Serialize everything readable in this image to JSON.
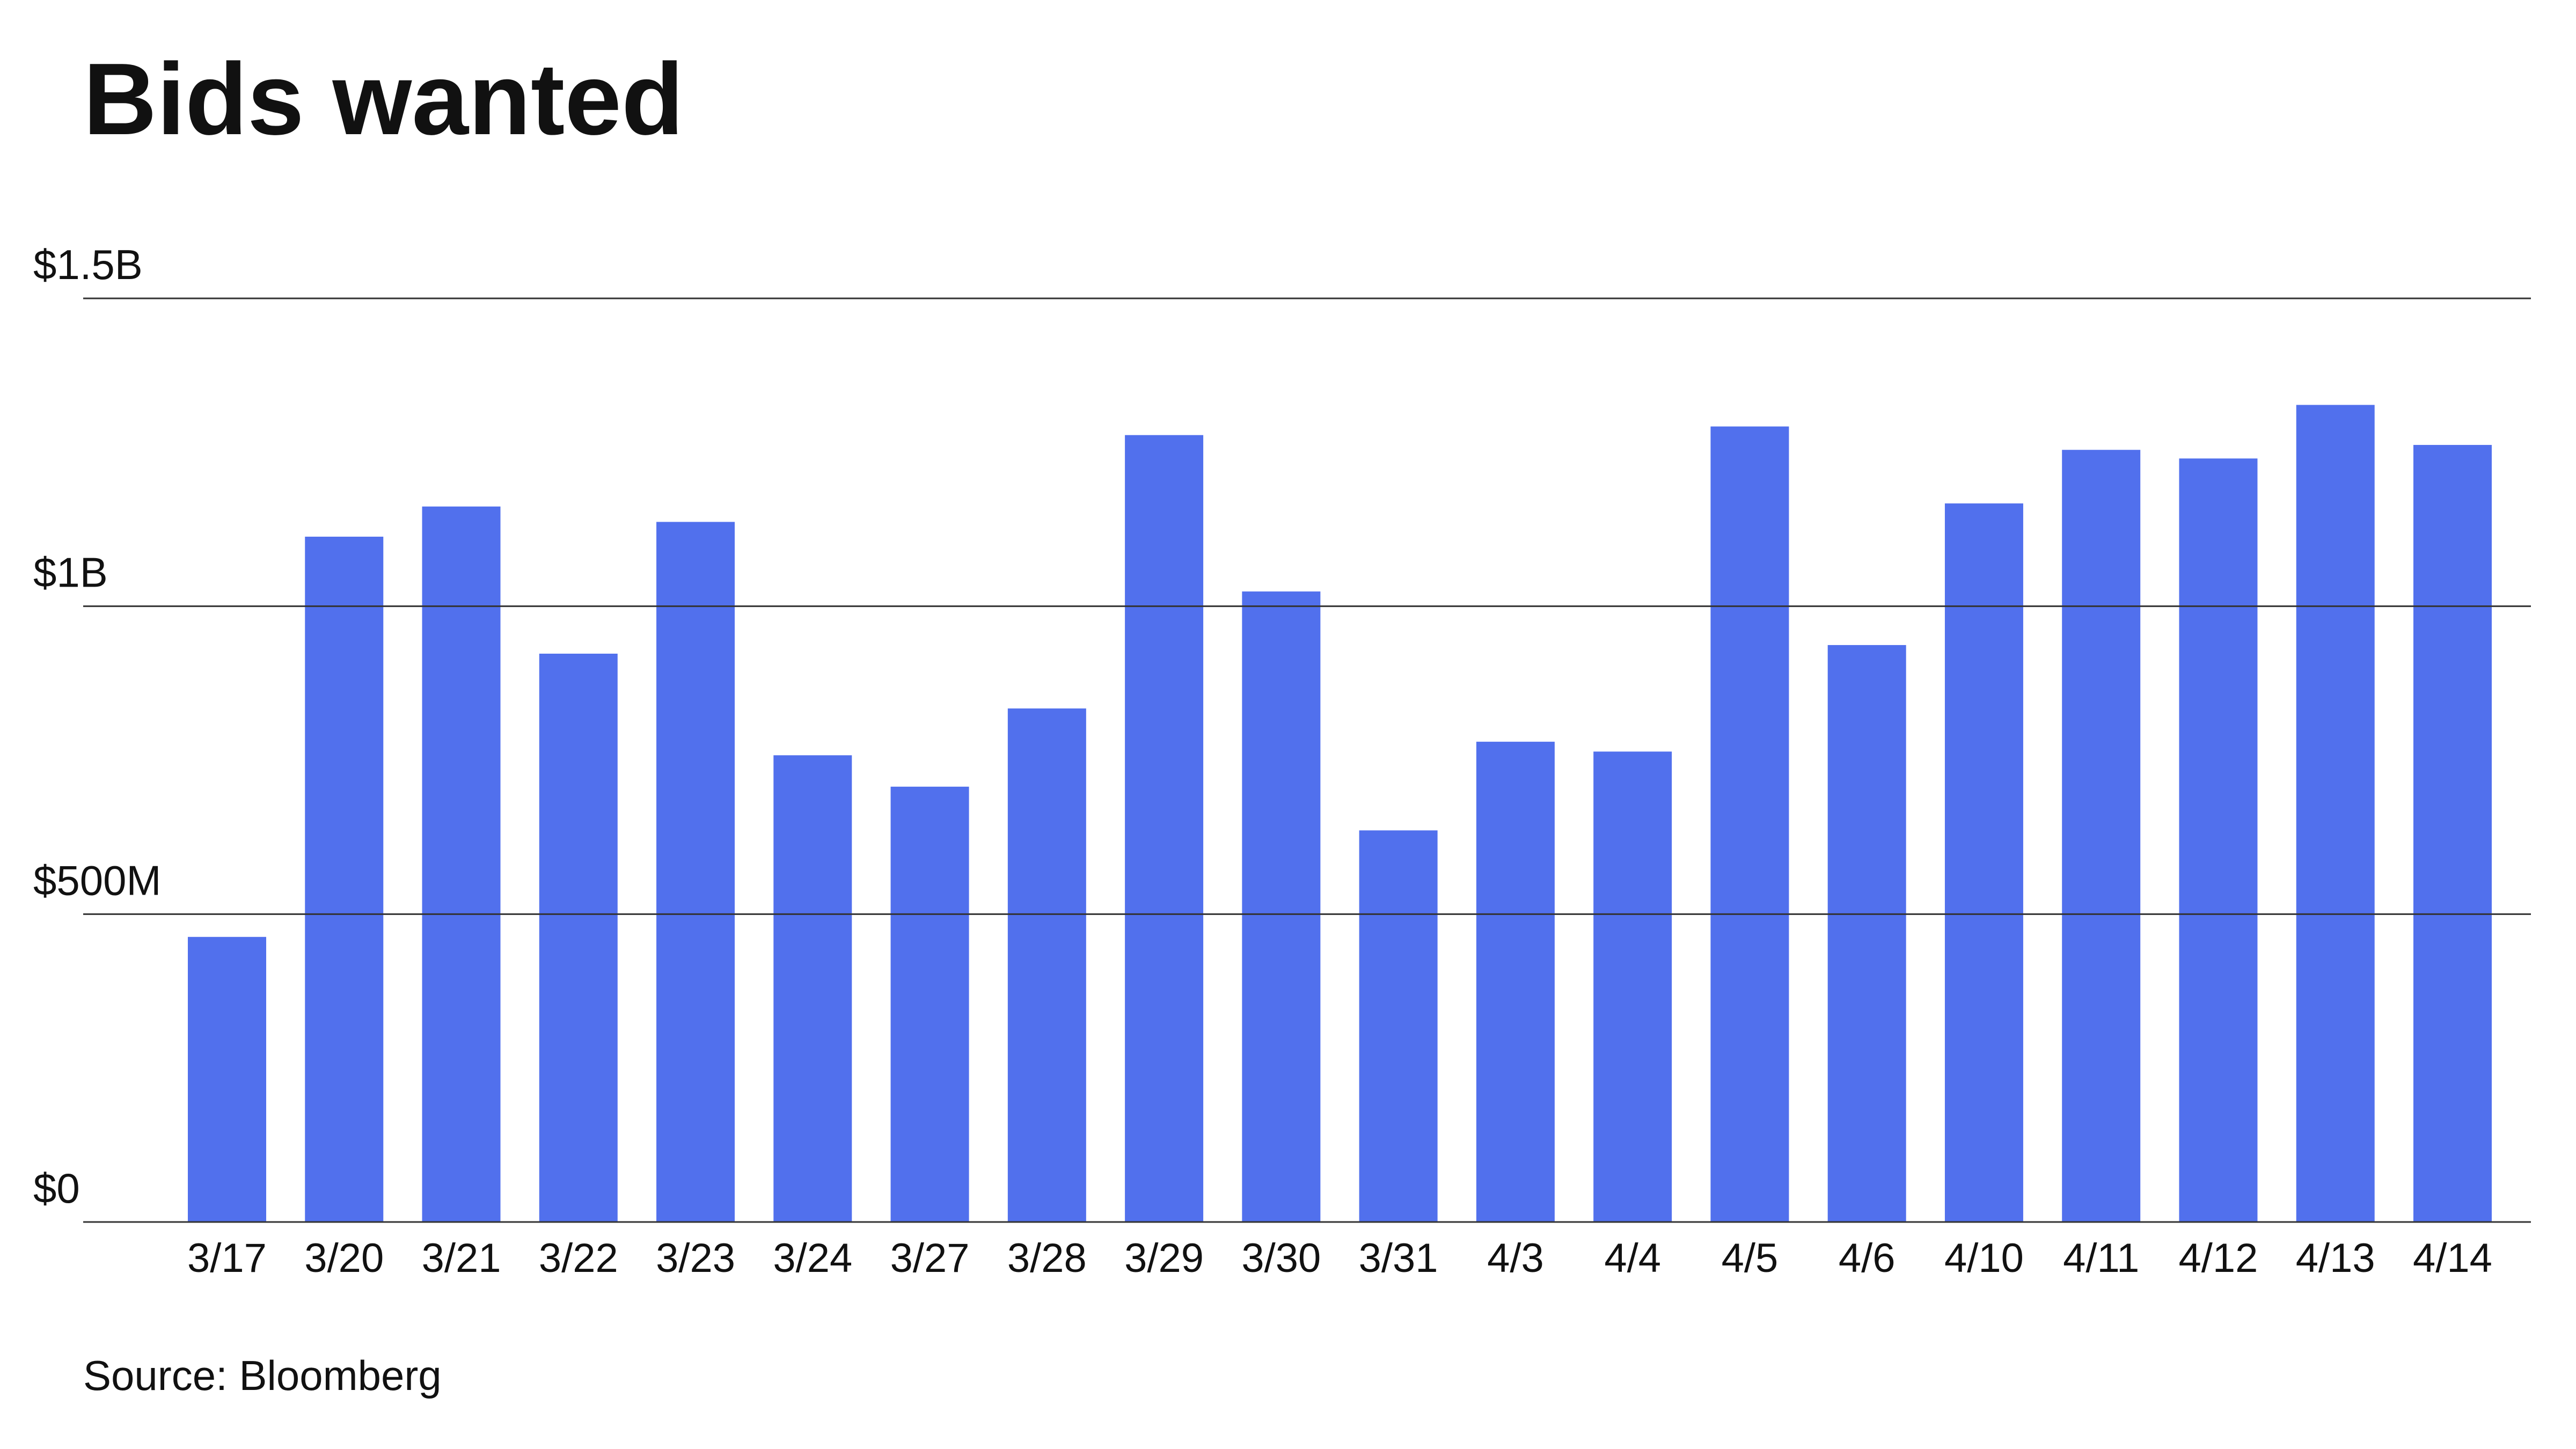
{
  "chart_data": {
    "type": "bar",
    "title": "Bids wanted",
    "source": "Source: Bloomberg",
    "categories": [
      "3/17",
      "3/20",
      "3/21",
      "3/22",
      "3/23",
      "3/24",
      "3/27",
      "3/28",
      "3/29",
      "3/30",
      "3/31",
      "4/3",
      "4/4",
      "4/5",
      "4/6",
      "4/10",
      "4/11",
      "4/12",
      "4/13",
      "4/14"
    ],
    "values": [
      463000000,
      1113000000,
      1162000000,
      923000000,
      1137000000,
      758000000,
      707000000,
      834000000,
      1278000000,
      1024000000,
      636000000,
      780000000,
      764000000,
      1292000000,
      937000000,
      1167000000,
      1254000000,
      1240000000,
      1327000000,
      1262000000
    ],
    "color": "#5170ed",
    "ylim": [
      0,
      1500000000
    ],
    "yticks": [
      {
        "value": 0,
        "label": "$0"
      },
      {
        "value": 500000000,
        "label": "$500M"
      },
      {
        "value": 1000000000,
        "label": "$1B"
      },
      {
        "value": 1500000000,
        "label": "$1.5B"
      }
    ],
    "grid": true
  }
}
